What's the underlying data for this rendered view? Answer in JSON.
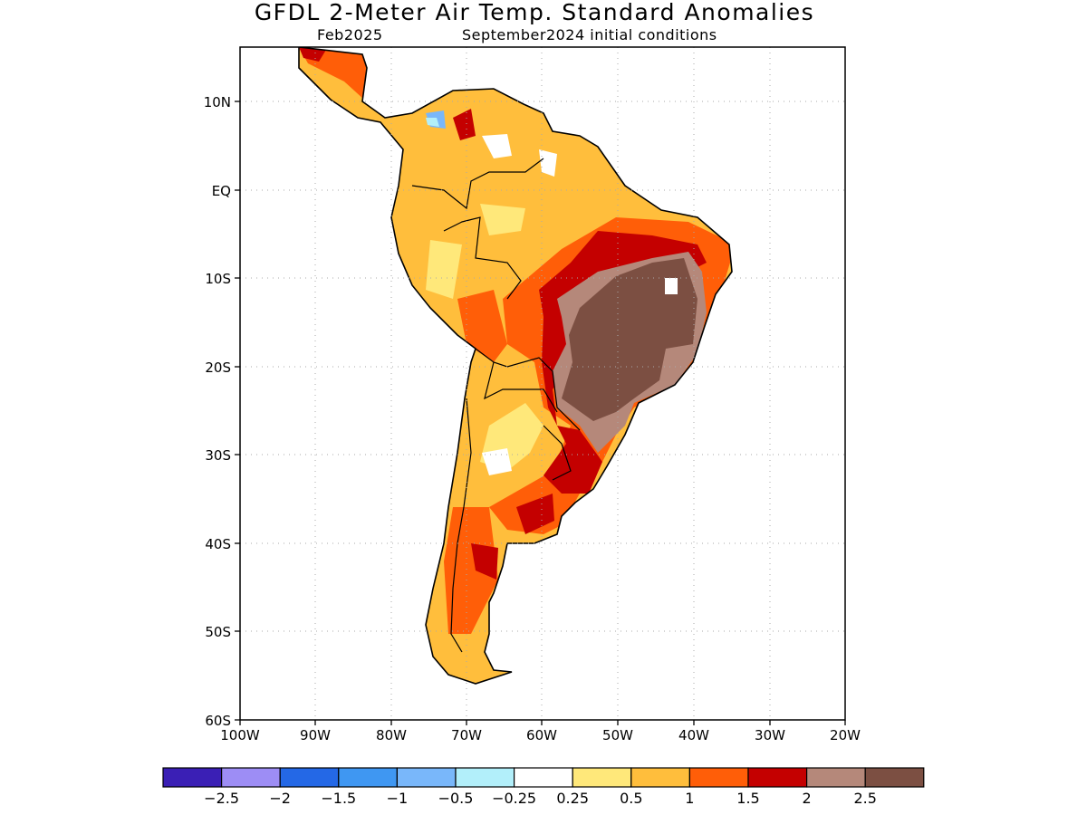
{
  "header": {
    "title": "GFDL 2-Meter Air Temp. Standard Anomalies",
    "left_subtitle": "Feb2025",
    "right_subtitle": "September2024 initial conditions"
  },
  "axes": {
    "lat_labels": [
      "10N",
      "EQ",
      "10S",
      "20S",
      "30S",
      "40S",
      "50S",
      "60S"
    ],
    "lon_labels": [
      "100W",
      "90W",
      "80W",
      "70W",
      "60W",
      "50W",
      "40W",
      "30W",
      "20W"
    ],
    "grid": "dotted"
  },
  "colorbar": {
    "colors": [
      "#3a1fb5",
      "#9d8df5",
      "#2468e6",
      "#3f97f2",
      "#79b7fa",
      "#b2effa",
      "#ffffff",
      "#ffe87a",
      "#ffbe3c",
      "#ff5e08",
      "#c40000",
      "#b5887a",
      "#7c4f42"
    ],
    "labels": [
      "-2.5",
      "-2",
      "-1.5",
      "-1",
      "-0.5",
      "-0.25",
      "0.25",
      "0.5",
      "1",
      "1.5",
      "2",
      "2.5"
    ]
  },
  "legend_meaning": {
    "light_yellow": "0.25 to 0.5",
    "orange": "0.5 to 1",
    "dark_orange": "1 to 1.5",
    "red": "1.5 to 2",
    "tan": "2 to 2.5",
    "brown": "above 2.5"
  }
}
